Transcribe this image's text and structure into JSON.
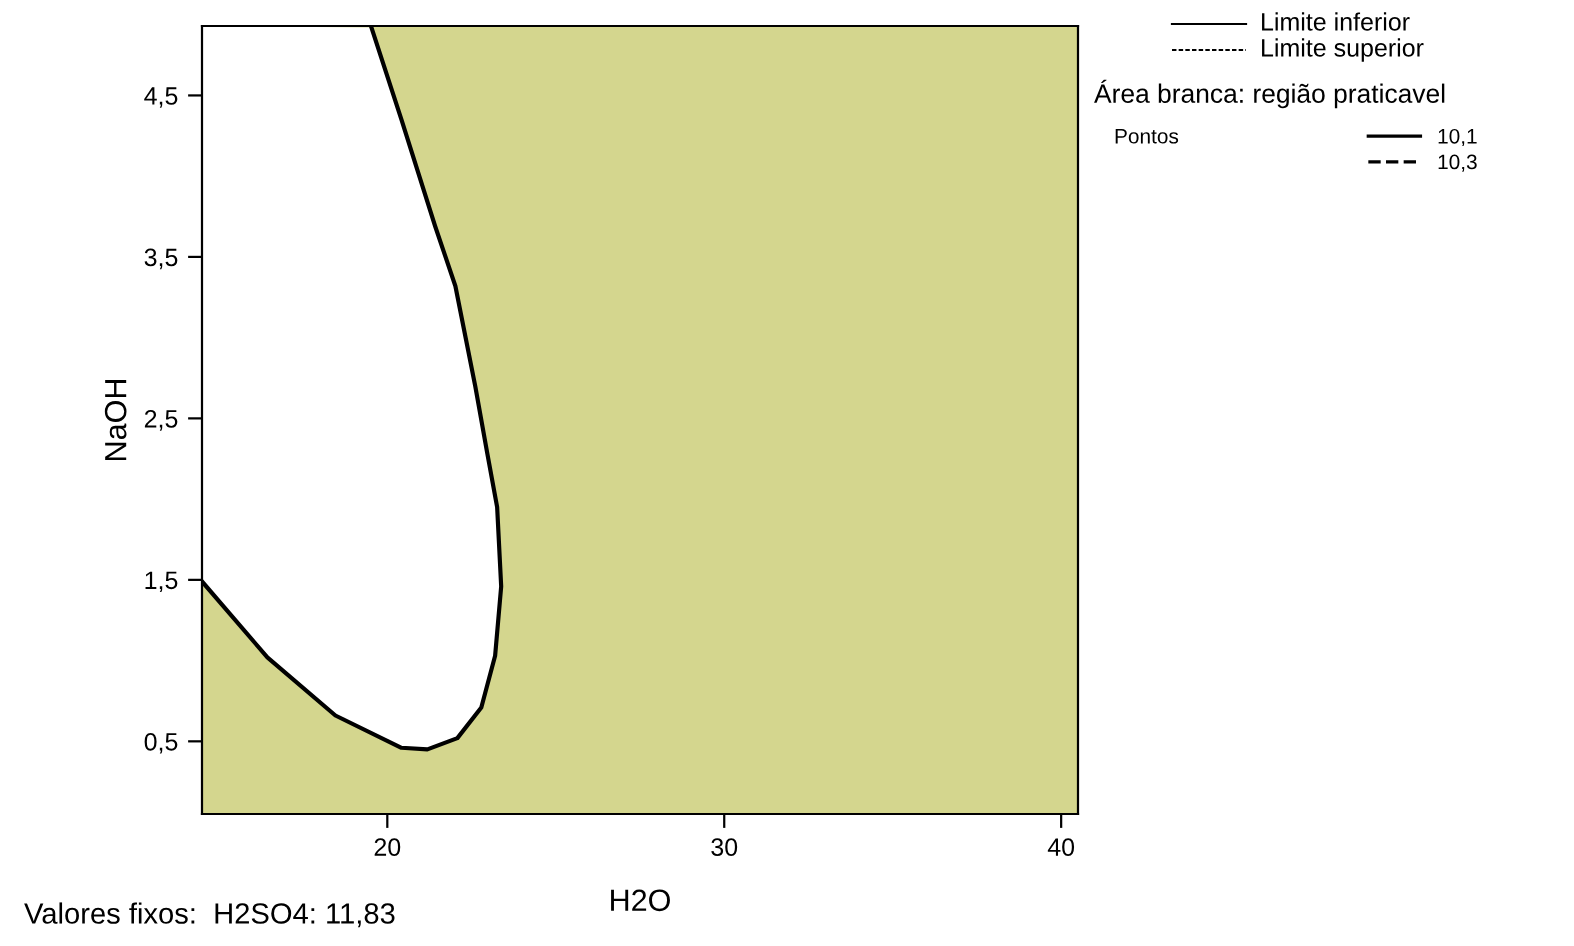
{
  "chart_data": {
    "type": "line",
    "xlabel": "H2O",
    "ylabel": "NaOH",
    "xlim": [
      14.5,
      40.5
    ],
    "xticks": [
      20,
      30,
      40
    ],
    "ylim": [
      0.05,
      4.93
    ],
    "yticks": [
      {
        "value": 0.5,
        "label": "0,5"
      },
      {
        "value": 1.5,
        "label": "1,5"
      },
      {
        "value": 2.5,
        "label": "2,5"
      },
      {
        "value": 3.5,
        "label": "3,5"
      },
      {
        "value": 4.5,
        "label": "4,5"
      }
    ],
    "bands": [
      {
        "axis": "x",
        "from": 14.5,
        "to": 40.5,
        "color": "#d4d68e"
      }
    ],
    "series": [
      {
        "name": "10,1",
        "color": "#000000",
        "line_style": "solid",
        "x": [
          14.5,
          16.44,
          18.46,
          20.42,
          21.19,
          22.08,
          22.79,
          23.2,
          23.38,
          23.26,
          22.97,
          22.61,
          22.02,
          21.42,
          20.42,
          19.53
        ],
        "values": [
          1.49,
          1.02,
          0.66,
          0.46,
          0.45,
          0.52,
          0.71,
          1.03,
          1.46,
          1.95,
          2.28,
          2.7,
          3.32,
          3.69,
          4.35,
          4.92
        ]
      },
      {
        "name": "10,3",
        "color": "#000000",
        "line_style": "dashed"
      }
    ],
    "legend": "right",
    "grid": false,
    "annotations": [
      "Limite inferior",
      "Limite superior",
      "Área branca: região praticavel",
      "Pontos",
      "Valores fixos:  H2SO4: 11,83"
    ]
  }
}
